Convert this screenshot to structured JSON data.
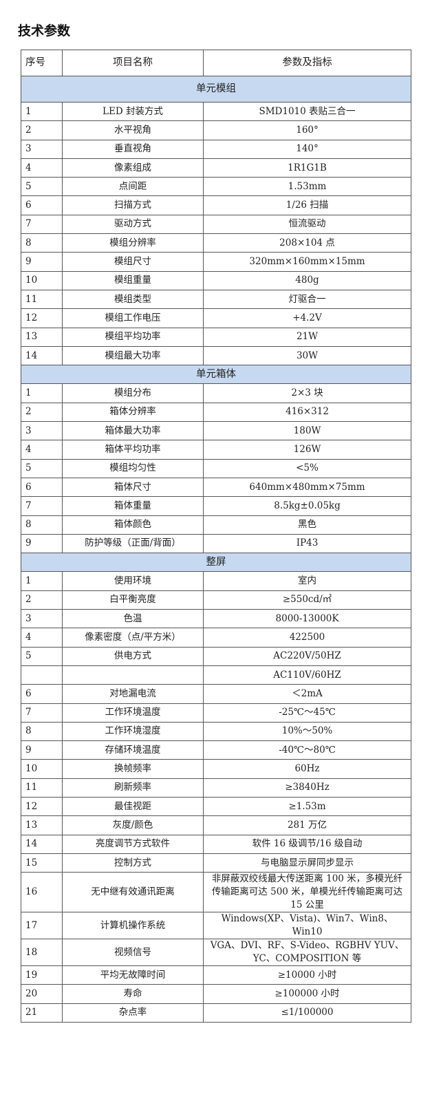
{
  "title": "技术参数",
  "header": [
    "序号",
    "项目名称",
    "参数及指标"
  ],
  "sections": [
    {
      "name": "单元模组",
      "rows": [
        [
          "1",
          "LED 封装方式",
          "SMD1010 表贴三合一"
        ],
        [
          "2",
          "水平视角",
          "160°"
        ],
        [
          "3",
          "垂直视角",
          "140°"
        ],
        [
          "4",
          "像素组成",
          "1R1G1B"
        ],
        [
          "5",
          "点间距",
          "1.53mm"
        ],
        [
          "6",
          "扫描方式",
          "1/26 扫描"
        ],
        [
          "7",
          "驱动方式",
          "恒流驱动"
        ],
        [
          "8",
          "模组分辨率",
          "208×104 点"
        ],
        [
          "9",
          "模组尺寸",
          "320mm×160mm×15mm"
        ],
        [
          "10",
          "模组重量",
          "480g"
        ],
        [
          "11",
          "模组类型",
          "灯驱合一"
        ],
        [
          "12",
          "模组工作电压",
          "+4.2V"
        ],
        [
          "13",
          "模组平均功率",
          "21W"
        ],
        [
          "14",
          "模组最大功率",
          "30W"
        ]
      ]
    },
    {
      "name": "单元箱体",
      "rows": [
        [
          "1",
          "模组分布",
          "2×3 块"
        ],
        [
          "2",
          "箱体分辨率",
          "416×312"
        ],
        [
          "3",
          "箱体最大功率",
          "180W"
        ],
        [
          "4",
          "箱体平均功率",
          "126W"
        ],
        [
          "5",
          "模组均匀性",
          "<5%"
        ],
        [
          "6",
          "箱体尺寸",
          "640mm×480mm×75mm"
        ],
        [
          "7",
          "箱体重量",
          "8.5kg±0.05kg"
        ],
        [
          "8",
          "箱体颜色",
          "黑色"
        ],
        [
          "9",
          "防护等级（正面/背面）",
          "IP43"
        ]
      ]
    },
    {
      "name": "整屏",
      "rows": [
        [
          "1",
          "使用环境",
          "室内"
        ],
        [
          "2",
          "白平衡亮度",
          "≥550cd/㎡"
        ],
        [
          "3",
          "色温",
          "8000-13000K"
        ],
        [
          "4",
          "像素密度（点/平方米）",
          "422500"
        ],
        [
          "5",
          "供电方式",
          "AC220V/50HZ"
        ],
        [
          "",
          "",
          "AC110V/60HZ"
        ],
        [
          "6",
          "对地漏电流",
          "＜2mA"
        ],
        [
          "7",
          "工作环境温度",
          "-25℃～45℃"
        ],
        [
          "8",
          "工作环境湿度",
          "10%～50%"
        ],
        [
          "9",
          "存储环境温度",
          "-40℃～80℃"
        ],
        [
          "10",
          "换帧频率",
          "60Hz"
        ],
        [
          "11",
          "刷新频率",
          "≥3840Hz"
        ],
        [
          "12",
          "最佳视距",
          "≥1.53m"
        ],
        [
          "13",
          "灰度/颜色",
          "281 万亿"
        ],
        [
          "14",
          "亮度调节方式软件",
          "软件 16 级调节/16 级自动"
        ],
        [
          "15",
          "控制方式",
          "与电脑显示屏同步显示"
        ],
        [
          "16",
          "无中继有效通讯距离",
          "非屏蔽双绞线最大传送距离 100 米，多模光纤传输距离可达 500 米，单模光纤传输距离可达 15 公里"
        ],
        [
          "17",
          "计算机操作系统",
          "Windows(XP、Vista)、Win7、Win8、Win10"
        ],
        [
          "18",
          "视频信号",
          "VGA、DVI、RF、S-Video、RGBHV YUV、YC、COMPOSITION 等"
        ],
        [
          "19",
          "平均无故障时间",
          "≥10000 小时"
        ],
        [
          "20",
          "寿命",
          "≥100000 小时"
        ],
        [
          "21",
          "杂点率",
          "≤1/100000"
        ]
      ]
    }
  ],
  "colors": {
    "section_bg": "#c6d9f0",
    "border": "#555555"
  }
}
